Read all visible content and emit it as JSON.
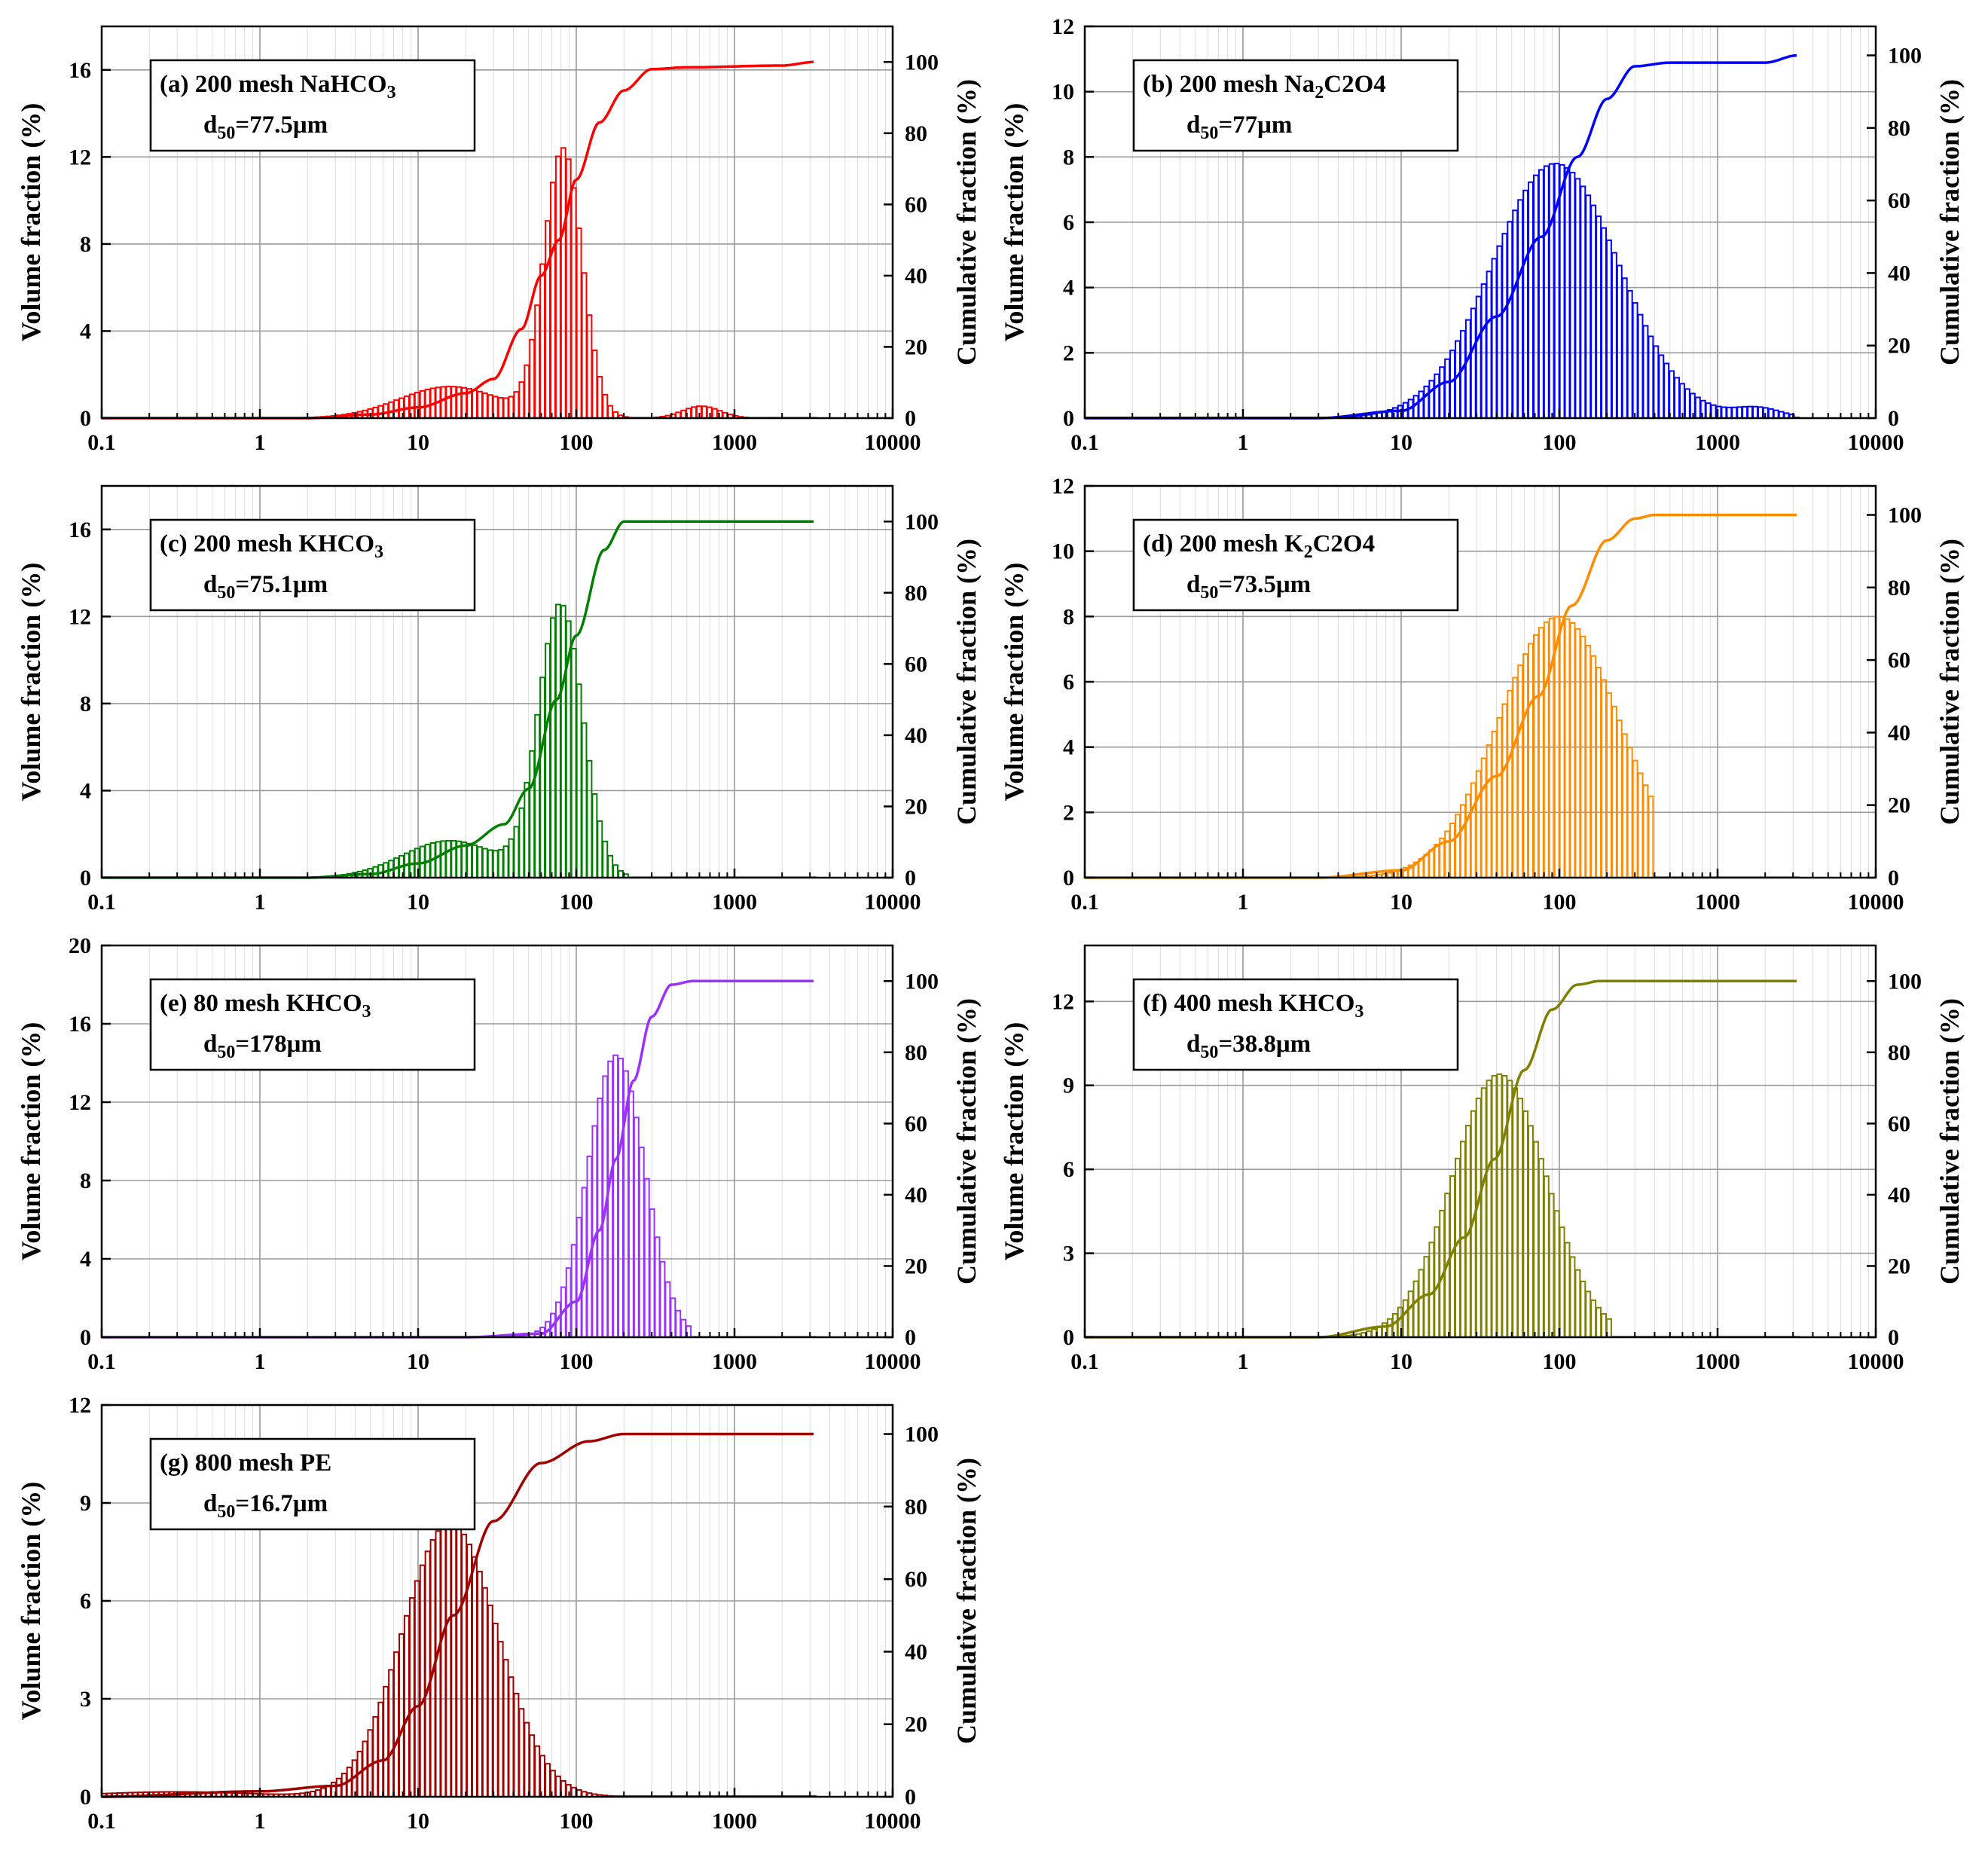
{
  "chart_data": [
    {
      "id": "a",
      "type": "bar",
      "color": "#ff0000",
      "label_prefix": "(a) 200 mesh NaHCO",
      "label_sub": "3",
      "label_rest": "",
      "d50_text": "=77.5μm",
      "xlabel": "",
      "ylabel": "Volume fraction (%)",
      "y2label": "Cumulative fraction (%)",
      "xscale": "log",
      "xlim": [
        0.1,
        10000
      ],
      "ylim": [
        0,
        18
      ],
      "y2lim": [
        0,
        110
      ],
      "xticks": [
        "0.1",
        "1",
        "10",
        "100",
        "1000",
        "10000"
      ],
      "yticks": [
        "0",
        "4",
        "8",
        "12",
        "16"
      ],
      "ytick_values": [
        0,
        4,
        8,
        12,
        16
      ],
      "y2ticks": [
        "0",
        "20",
        "40",
        "60",
        "80",
        "100"
      ],
      "grid": true,
      "volume_peaks": [
        [
          83,
          12.3,
          0.12
        ],
        [
          16,
          1.45,
          0.32
        ],
        [
          620,
          0.55,
          0.12
        ]
      ],
      "volume_range": [
        2,
        1400
      ],
      "cumulative": [
        [
          0.1,
          0
        ],
        [
          2,
          0
        ],
        [
          5,
          1
        ],
        [
          10,
          3
        ],
        [
          20,
          7
        ],
        [
          30,
          11
        ],
        [
          45,
          25
        ],
        [
          60,
          40
        ],
        [
          77.5,
          50
        ],
        [
          100,
          67
        ],
        [
          140,
          83
        ],
        [
          200,
          92
        ],
        [
          300,
          98
        ],
        [
          500,
          98.5
        ],
        [
          2000,
          99
        ],
        [
          3200,
          100
        ]
      ]
    },
    {
      "id": "b",
      "type": "bar",
      "color": "#0000ff",
      "label_prefix": "(b) 200 mesh Na",
      "label_sub": "2",
      "label_rest": "C2O4",
      "d50_text": "=77μm",
      "xlabel": "",
      "ylabel": "Volume fraction (%)",
      "y2label": "Cumulative fraction (%)",
      "xscale": "log",
      "xlim": [
        0.1,
        10000
      ],
      "ylim": [
        0,
        12
      ],
      "y2lim": [
        0,
        108
      ],
      "xticks": [
        "0.1",
        "1",
        "10",
        "100",
        "1000",
        "10000"
      ],
      "yticks": [
        "0",
        "2",
        "4",
        "6",
        "8",
        "10",
        "12"
      ],
      "ytick_values": [
        0,
        2,
        4,
        6,
        8,
        10,
        12
      ],
      "y2ticks": [
        "0",
        "20",
        "40",
        "60",
        "80",
        "100"
      ],
      "grid": true,
      "volume_peaks": [
        [
          95,
          7.8,
          0.4
        ],
        [
          1800,
          0.3,
          0.15
        ]
      ],
      "volume_range": [
        3,
        3000
      ],
      "cumulative": [
        [
          0.1,
          0
        ],
        [
          3,
          0
        ],
        [
          10,
          2
        ],
        [
          20,
          10
        ],
        [
          40,
          28
        ],
        [
          77,
          50
        ],
        [
          130,
          72
        ],
        [
          200,
          88
        ],
        [
          300,
          97
        ],
        [
          500,
          98
        ],
        [
          2000,
          98
        ],
        [
          3200,
          100
        ]
      ]
    },
    {
      "id": "c",
      "type": "bar",
      "color": "#008000",
      "label_prefix": "(c) 200 mesh KHCO",
      "label_sub": "3",
      "label_rest": "",
      "d50_text": "=75.1μm",
      "xlabel": "",
      "ylabel": "Volume fraction (%)",
      "y2label": "Cumulative fraction (%)",
      "xscale": "log",
      "xlim": [
        0.1,
        10000
      ],
      "ylim": [
        0,
        18
      ],
      "y2lim": [
        0,
        110
      ],
      "xticks": [
        "0.1",
        "1",
        "10",
        "100",
        "1000",
        "10000"
      ],
      "yticks": [
        "0",
        "4",
        "8",
        "12",
        "16"
      ],
      "ytick_values": [
        0,
        4,
        8,
        12,
        16
      ],
      "y2ticks": [
        "0",
        "20",
        "40",
        "60",
        "80",
        "100"
      ],
      "grid": true,
      "volume_peaks": [
        [
          80,
          12.5,
          0.14
        ],
        [
          16,
          1.7,
          0.3
        ]
      ],
      "volume_range": [
        2,
        210
      ],
      "cumulative": [
        [
          0.1,
          0
        ],
        [
          2,
          0
        ],
        [
          5,
          1
        ],
        [
          10,
          4
        ],
        [
          20,
          9
        ],
        [
          35,
          15
        ],
        [
          50,
          25
        ],
        [
          75.1,
          50
        ],
        [
          100,
          68
        ],
        [
          150,
          92
        ],
        [
          200,
          100
        ],
        [
          3200,
          100
        ]
      ]
    },
    {
      "id": "d",
      "type": "bar",
      "color": "#ff8c00",
      "label_prefix": "(d) 200 mesh K",
      "label_sub": "2",
      "label_rest": "C2O4",
      "d50_text": "=73.5μm",
      "xlabel": "",
      "ylabel": "Volume fraction (%)",
      "y2label": "Cumulative fraction (%)",
      "xscale": "log",
      "xlim": [
        0.1,
        10000
      ],
      "ylim": [
        0,
        12
      ],
      "y2lim": [
        0,
        108
      ],
      "xticks": [
        "0.1",
        "1",
        "10",
        "100",
        "1000",
        "10000"
      ],
      "yticks": [
        "0",
        "2",
        "4",
        "6",
        "8",
        "10",
        "12"
      ],
      "ytick_values": [
        0,
        2,
        4,
        6,
        8,
        10,
        12
      ],
      "y2ticks": [
        "0",
        "20",
        "40",
        "60",
        "80",
        "100"
      ],
      "grid": true,
      "volume_peaks": [
        [
          100,
          8.0,
          0.38
        ]
      ],
      "volume_range": [
        3,
        400
      ],
      "cumulative": [
        [
          0.1,
          0
        ],
        [
          3,
          0
        ],
        [
          10,
          2
        ],
        [
          20,
          10
        ],
        [
          40,
          28
        ],
        [
          73.5,
          50
        ],
        [
          120,
          75
        ],
        [
          200,
          93
        ],
        [
          300,
          99
        ],
        [
          400,
          100
        ],
        [
          3200,
          100
        ]
      ]
    },
    {
      "id": "e",
      "type": "bar",
      "color": "#9b30ff",
      "label_prefix": "(e) 80 mesh KHCO",
      "label_sub": "3",
      "label_rest": "",
      "d50_text": "=178μm",
      "xlabel": "",
      "ylabel": "Volume fraction (%)",
      "y2label": "Cumulative fraction (%)",
      "xscale": "log",
      "xlim": [
        0.1,
        10000
      ],
      "ylim": [
        0,
        20
      ],
      "y2lim": [
        0,
        110
      ],
      "xticks": [
        "0.1",
        "1",
        "10",
        "100",
        "1000",
        "10000"
      ],
      "yticks": [
        "0",
        "4",
        "8",
        "12",
        "16",
        "20"
      ],
      "ytick_values": [
        0,
        4,
        8,
        12,
        16,
        20
      ],
      "y2ticks": [
        "0",
        "20",
        "40",
        "60",
        "80",
        "100"
      ],
      "grid": true,
      "volume_peaks": [
        [
          180,
          14.4,
          0.18
        ]
      ],
      "volume_range": [
        15,
        550
      ],
      "cumulative": [
        [
          0.1,
          0
        ],
        [
          20,
          0
        ],
        [
          60,
          1
        ],
        [
          100,
          10
        ],
        [
          140,
          30
        ],
        [
          178,
          50
        ],
        [
          230,
          72
        ],
        [
          300,
          90
        ],
        [
          400,
          99
        ],
        [
          550,
          100
        ],
        [
          3200,
          100
        ]
      ]
    },
    {
      "id": "f",
      "type": "bar",
      "color": "#808000",
      "label_prefix": "(f) 400 mesh KHCO",
      "label_sub": "3",
      "label_rest": "",
      "d50_text": "=38.8μm",
      "xlabel": "",
      "ylabel": "Volume fraction (%)",
      "y2label": "Cumulative fraction (%)",
      "xscale": "log",
      "xlim": [
        0.1,
        10000
      ],
      "ylim": [
        0,
        14
      ],
      "y2lim": [
        0,
        110
      ],
      "xticks": [
        "0.1",
        "1",
        "10",
        "100",
        "1000",
        "10000"
      ],
      "yticks": [
        "0",
        "3",
        "6",
        "9",
        "12"
      ],
      "ytick_values": [
        0,
        3,
        6,
        9,
        12
      ],
      "y2ticks": [
        "0",
        "20",
        "40",
        "60",
        "80",
        "100"
      ],
      "grid": true,
      "volume_peaks": [
        [
          42,
          9.4,
          0.3
        ]
      ],
      "volume_range": [
        2,
        220
      ],
      "cumulative": [
        [
          0.1,
          0
        ],
        [
          3,
          0
        ],
        [
          8,
          3
        ],
        [
          15,
          12
        ],
        [
          25,
          28
        ],
        [
          38.8,
          50
        ],
        [
          60,
          75
        ],
        [
          90,
          92
        ],
        [
          130,
          99
        ],
        [
          180,
          100
        ],
        [
          3200,
          100
        ]
      ]
    },
    {
      "id": "g",
      "type": "bar",
      "color": "#a00000",
      "label_prefix": "(g) 800 mesh PE",
      "label_sub": "",
      "label_rest": "",
      "d50_text": "=16.7μm",
      "xlabel": "",
      "ylabel": "Volume fraction (%)",
      "y2label": "Cumulative fraction (%)",
      "xscale": "log",
      "xlim": [
        0.1,
        10000
      ],
      "ylim": [
        0,
        12
      ],
      "y2lim": [
        0,
        108
      ],
      "xticks": [
        "0.1",
        "1",
        "10",
        "100",
        "1000",
        "10000"
      ],
      "yticks": [
        "0",
        "3",
        "6",
        "9",
        "12"
      ],
      "ytick_values": [
        0,
        3,
        6,
        9,
        12
      ],
      "y2ticks": [
        "0",
        "20",
        "40",
        "60",
        "80",
        "100"
      ],
      "grid": true,
      "volume_peaks": [
        [
          16,
          8.4,
          0.3
        ],
        [
          0.3,
          0.15,
          0.5
        ]
      ],
      "volume_range": [
        0.1,
        300
      ],
      "cumulative": [
        [
          0.1,
          0
        ],
        [
          1,
          1.5
        ],
        [
          3,
          3
        ],
        [
          6,
          10
        ],
        [
          10,
          25
        ],
        [
          16.7,
          50
        ],
        [
          30,
          76
        ],
        [
          60,
          92
        ],
        [
          120,
          98
        ],
        [
          200,
          100
        ],
        [
          3200,
          100
        ]
      ]
    }
  ]
}
